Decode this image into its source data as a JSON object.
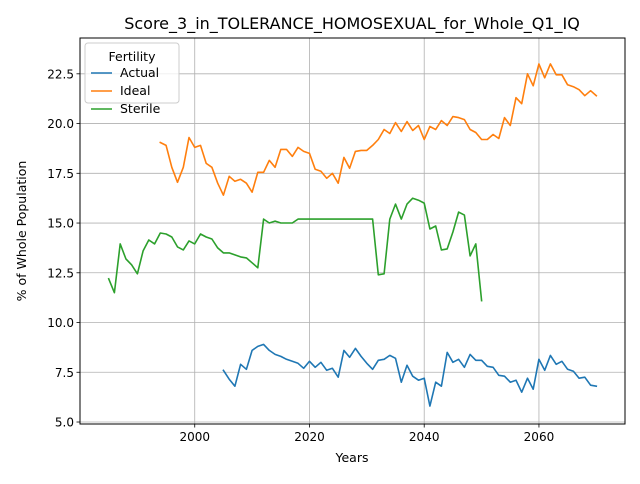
{
  "chart_data": {
    "type": "line",
    "title": "Score_3_in_TOLERANCE_HOMOSEXUAL_for_Whole_Q1_IQ",
    "xlabel": "Years",
    "ylabel": "% of Whole Population",
    "xlim": [
      1980,
      2075
    ],
    "ylim": [
      4.9,
      24.3
    ],
    "xticks": [
      2000,
      2020,
      2040,
      2060
    ],
    "xtick_labels": [
      "2000",
      "2020",
      "2040",
      "2060"
    ],
    "yticks": [
      5.0,
      7.5,
      10.0,
      12.5,
      15.0,
      17.5,
      20.0,
      22.5
    ],
    "ytick_labels": [
      "5.0",
      "7.5",
      "10.0",
      "12.5",
      "15.0",
      "17.5",
      "20.0",
      "22.5"
    ],
    "grid": true,
    "legend": {
      "title": "Fertility",
      "placement": "top-left"
    },
    "series": [
      {
        "name": "Actual",
        "color": "#1f77b4",
        "x": [
          2005,
          2006,
          2007,
          2008,
          2009,
          2010,
          2011,
          2012,
          2013,
          2014,
          2015,
          2016,
          2017,
          2018,
          2019,
          2020,
          2021,
          2022,
          2023,
          2024,
          2025,
          2026,
          2027,
          2028,
          2029,
          2030,
          2031,
          2032,
          2033,
          2034,
          2035,
          2036,
          2037,
          2038,
          2039,
          2040,
          2041,
          2042,
          2043,
          2044,
          2045,
          2046,
          2047,
          2048,
          2049,
          2050,
          2051,
          2052,
          2053,
          2054,
          2055,
          2056,
          2057,
          2058,
          2059,
          2060,
          2061,
          2062,
          2063,
          2064,
          2065,
          2066,
          2067,
          2068,
          2069,
          2070
        ],
        "y": [
          7.6,
          7.15,
          6.8,
          7.9,
          7.65,
          8.6,
          8.8,
          8.9,
          8.6,
          8.4,
          8.3,
          8.15,
          8.05,
          7.95,
          7.7,
          8.05,
          7.75,
          8.0,
          7.6,
          7.7,
          7.25,
          8.6,
          8.25,
          8.7,
          8.3,
          7.95,
          7.65,
          8.1,
          8.15,
          8.35,
          8.2,
          7.0,
          7.85,
          7.3,
          7.1,
          7.2,
          5.8,
          7.0,
          6.8,
          8.5,
          8.0,
          8.15,
          7.75,
          8.4,
          8.1,
          8.1,
          7.8,
          7.75,
          7.35,
          7.3,
          7.0,
          7.1,
          6.5,
          7.2,
          6.65,
          8.15,
          7.6,
          8.35,
          7.9,
          8.05,
          7.65,
          7.55,
          7.2,
          7.25,
          6.85,
          6.8
        ]
      },
      {
        "name": "Ideal",
        "color": "#ff7f0e",
        "x": [
          1994,
          1995,
          1996,
          1997,
          1998,
          1999,
          2000,
          2001,
          2002,
          2003,
          2004,
          2005,
          2006,
          2007,
          2008,
          2009,
          2010,
          2011,
          2012,
          2013,
          2014,
          2015,
          2016,
          2017,
          2018,
          2019,
          2020,
          2021,
          2022,
          2023,
          2024,
          2025,
          2026,
          2027,
          2028,
          2029,
          2030,
          2031,
          2032,
          2033,
          2034,
          2035,
          2036,
          2037,
          2038,
          2039,
          2040,
          2041,
          2042,
          2043,
          2044,
          2045,
          2046,
          2047,
          2048,
          2049,
          2050,
          2051,
          2052,
          2053,
          2054,
          2055,
          2056,
          2057,
          2058,
          2059,
          2060,
          2061,
          2062,
          2063,
          2064,
          2065,
          2066,
          2067,
          2068,
          2069,
          2070
        ],
        "y": [
          19.05,
          18.9,
          17.8,
          17.05,
          17.8,
          19.3,
          18.8,
          18.9,
          18.0,
          17.8,
          17.0,
          16.4,
          17.35,
          17.1,
          17.2,
          17.0,
          16.55,
          17.55,
          17.55,
          18.15,
          17.8,
          18.7,
          18.7,
          18.35,
          18.8,
          18.6,
          18.5,
          17.7,
          17.6,
          17.25,
          17.5,
          17.0,
          18.3,
          17.75,
          18.6,
          18.65,
          18.65,
          18.9,
          19.2,
          19.7,
          19.5,
          20.05,
          19.6,
          20.1,
          19.65,
          19.9,
          19.2,
          19.85,
          19.7,
          20.15,
          19.9,
          20.35,
          20.3,
          20.2,
          19.7,
          19.55,
          19.2,
          19.2,
          19.45,
          19.25,
          20.3,
          19.9,
          21.3,
          21.0,
          22.5,
          21.9,
          23.0,
          22.3,
          23.0,
          22.45,
          22.45,
          21.95,
          21.85,
          21.7,
          21.4,
          21.65,
          21.4
        ]
      },
      {
        "name": "Sterile",
        "color": "#2ca02c",
        "x": [
          1985,
          1986,
          1987,
          1988,
          1989,
          1990,
          1991,
          1992,
          1993,
          1994,
          1995,
          1996,
          1997,
          1998,
          1999,
          2000,
          2001,
          2002,
          2003,
          2004,
          2005,
          2006,
          2007,
          2008,
          2009,
          2010,
          2011,
          2012,
          2013,
          2014,
          2015,
          2016,
          2017,
          2018,
          2019,
          2020,
          2021,
          2022,
          2023,
          2024,
          2025,
          2026,
          2027,
          2028,
          2029,
          2030,
          2031,
          2032,
          2033,
          2034,
          2035,
          2036,
          2037,
          2038,
          2039,
          2040,
          2041,
          2042,
          2043,
          2044,
          2045,
          2046,
          2047,
          2048,
          2049,
          2050
        ],
        "y": [
          12.2,
          11.5,
          13.95,
          13.2,
          12.9,
          12.45,
          13.6,
          14.15,
          13.95,
          14.5,
          14.45,
          14.3,
          13.8,
          13.65,
          14.1,
          13.95,
          14.45,
          14.3,
          14.2,
          13.75,
          13.5,
          13.5,
          13.4,
          13.3,
          13.25,
          13.0,
          12.75,
          15.2,
          15.0,
          15.1,
          15.0,
          15.0,
          15.0,
          15.2,
          15.2,
          15.2,
          15.2,
          15.2,
          15.2,
          15.2,
          15.2,
          15.2,
          15.2,
          15.2,
          15.2,
          15.2,
          15.2,
          12.4,
          12.45,
          15.2,
          15.95,
          15.2,
          15.95,
          16.25,
          16.15,
          16.0,
          14.7,
          14.85,
          13.65,
          13.7,
          14.55,
          15.55,
          15.4,
          13.35,
          13.95,
          11.1
        ]
      }
    ]
  }
}
